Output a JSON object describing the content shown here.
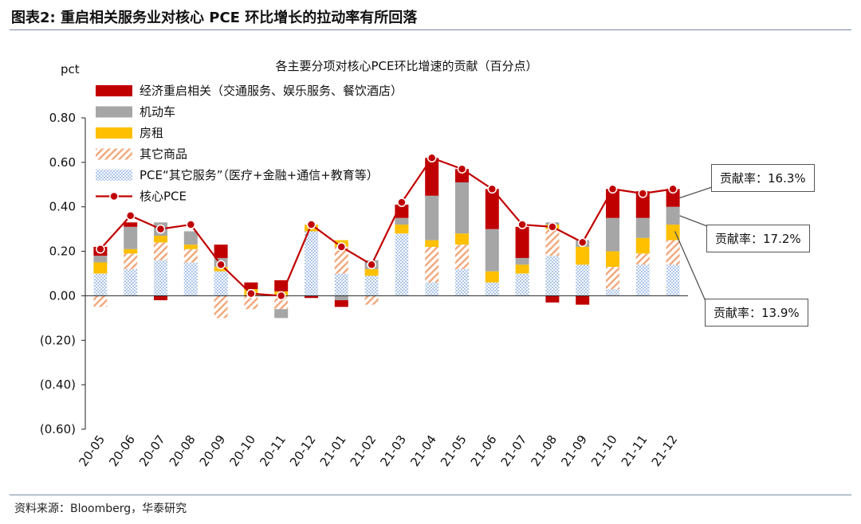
{
  "figure": {
    "title": "图表2:  重启相关服务业对核心 PCE 环比增长的拉动率有所回落",
    "source": "资料来源：Bloomberg，华泰研究"
  },
  "chart_data": {
    "type": "bar",
    "stacked": true,
    "title": "各主要分项对核心PCE环比增速的贡献（百分点）",
    "ylabel": "pct",
    "ylim": [
      -0.6,
      0.8
    ],
    "yticks": [
      0.8,
      0.6,
      0.4,
      0.2,
      0.0,
      -0.2,
      -0.4,
      -0.6
    ],
    "ytick_labels": [
      "0.80",
      "0.60",
      "0.40",
      "0.20",
      "0.00",
      "(0.20)",
      "(0.40)",
      "(0.60)"
    ],
    "categories": [
      "20-05",
      "20-06",
      "20-07",
      "20-08",
      "20-09",
      "20-10",
      "20-11",
      "20-12",
      "21-01",
      "21-02",
      "21-03",
      "21-04",
      "21-05",
      "21-06",
      "21-07",
      "21-08",
      "21-09",
      "21-10",
      "21-11",
      "21-12"
    ],
    "series": [
      {
        "key": "other_services",
        "name": "PCE“其它服务”（医疗+金融+通信+教育等）",
        "color": "#6f9bd8",
        "pattern": "dots",
        "values": [
          0.1,
          0.12,
          0.16,
          0.15,
          0.11,
          0.0,
          0.0,
          0.29,
          0.1,
          0.09,
          0.28,
          0.06,
          0.12,
          0.06,
          0.1,
          0.18,
          0.14,
          0.03,
          0.14,
          0.14
        ]
      },
      {
        "key": "other_goods",
        "name": "其它商品",
        "color": "#f1a77a",
        "pattern": "hatch",
        "values": [
          -0.05,
          0.07,
          0.08,
          0.06,
          -0.1,
          -0.06,
          -0.06,
          0.0,
          0.12,
          -0.04,
          0.0,
          0.16,
          0.11,
          0.0,
          0.0,
          0.12,
          0.0,
          0.1,
          0.05,
          0.11
        ]
      },
      {
        "key": "rent",
        "name": "房租",
        "color": "#ffc000",
        "pattern": "solid",
        "values": [
          0.05,
          0.02,
          0.03,
          0.02,
          0.02,
          0.03,
          0.02,
          0.03,
          0.03,
          0.03,
          0.04,
          0.03,
          0.05,
          0.05,
          0.04,
          0.02,
          0.08,
          0.07,
          0.07,
          0.07
        ]
      },
      {
        "key": "vehicles",
        "name": "机动车",
        "color": "#a6a6a6",
        "pattern": "solid",
        "values": [
          0.03,
          0.1,
          0.06,
          0.06,
          0.04,
          0.0,
          -0.04,
          0.0,
          -0.02,
          0.04,
          0.03,
          0.2,
          0.23,
          0.19,
          0.03,
          0.01,
          0.03,
          0.15,
          0.09,
          0.08
        ]
      },
      {
        "key": "reopening",
        "name": "经济重启相关（交通服务、娱乐服务、餐饮酒店）",
        "color": "#c00000",
        "pattern": "solid",
        "values": [
          0.04,
          0.02,
          -0.02,
          0.0,
          0.06,
          0.03,
          0.05,
          -0.01,
          -0.03,
          0.0,
          0.06,
          0.17,
          0.06,
          0.18,
          0.14,
          -0.03,
          -0.04,
          0.13,
          0.12,
          0.08
        ]
      }
    ],
    "line": {
      "name": "核心PCE",
      "color": "#c00000",
      "values": [
        0.21,
        0.36,
        0.3,
        0.32,
        0.14,
        0.01,
        0.0,
        0.32,
        0.22,
        0.14,
        0.42,
        0.62,
        0.57,
        0.48,
        0.32,
        0.31,
        0.24,
        0.48,
        0.46,
        0.48
      ]
    },
    "legend_order": [
      "reopening",
      "vehicles",
      "rent",
      "other_goods",
      "other_services",
      "line"
    ],
    "annotations": [
      {
        "text": "贡献率：16.3%",
        "target": "21-12 reopening"
      },
      {
        "text": "贡献率：17.2%",
        "target": "21-12 vehicles"
      },
      {
        "text": "贡献率：13.9%",
        "target": "21-12 rent"
      }
    ]
  }
}
